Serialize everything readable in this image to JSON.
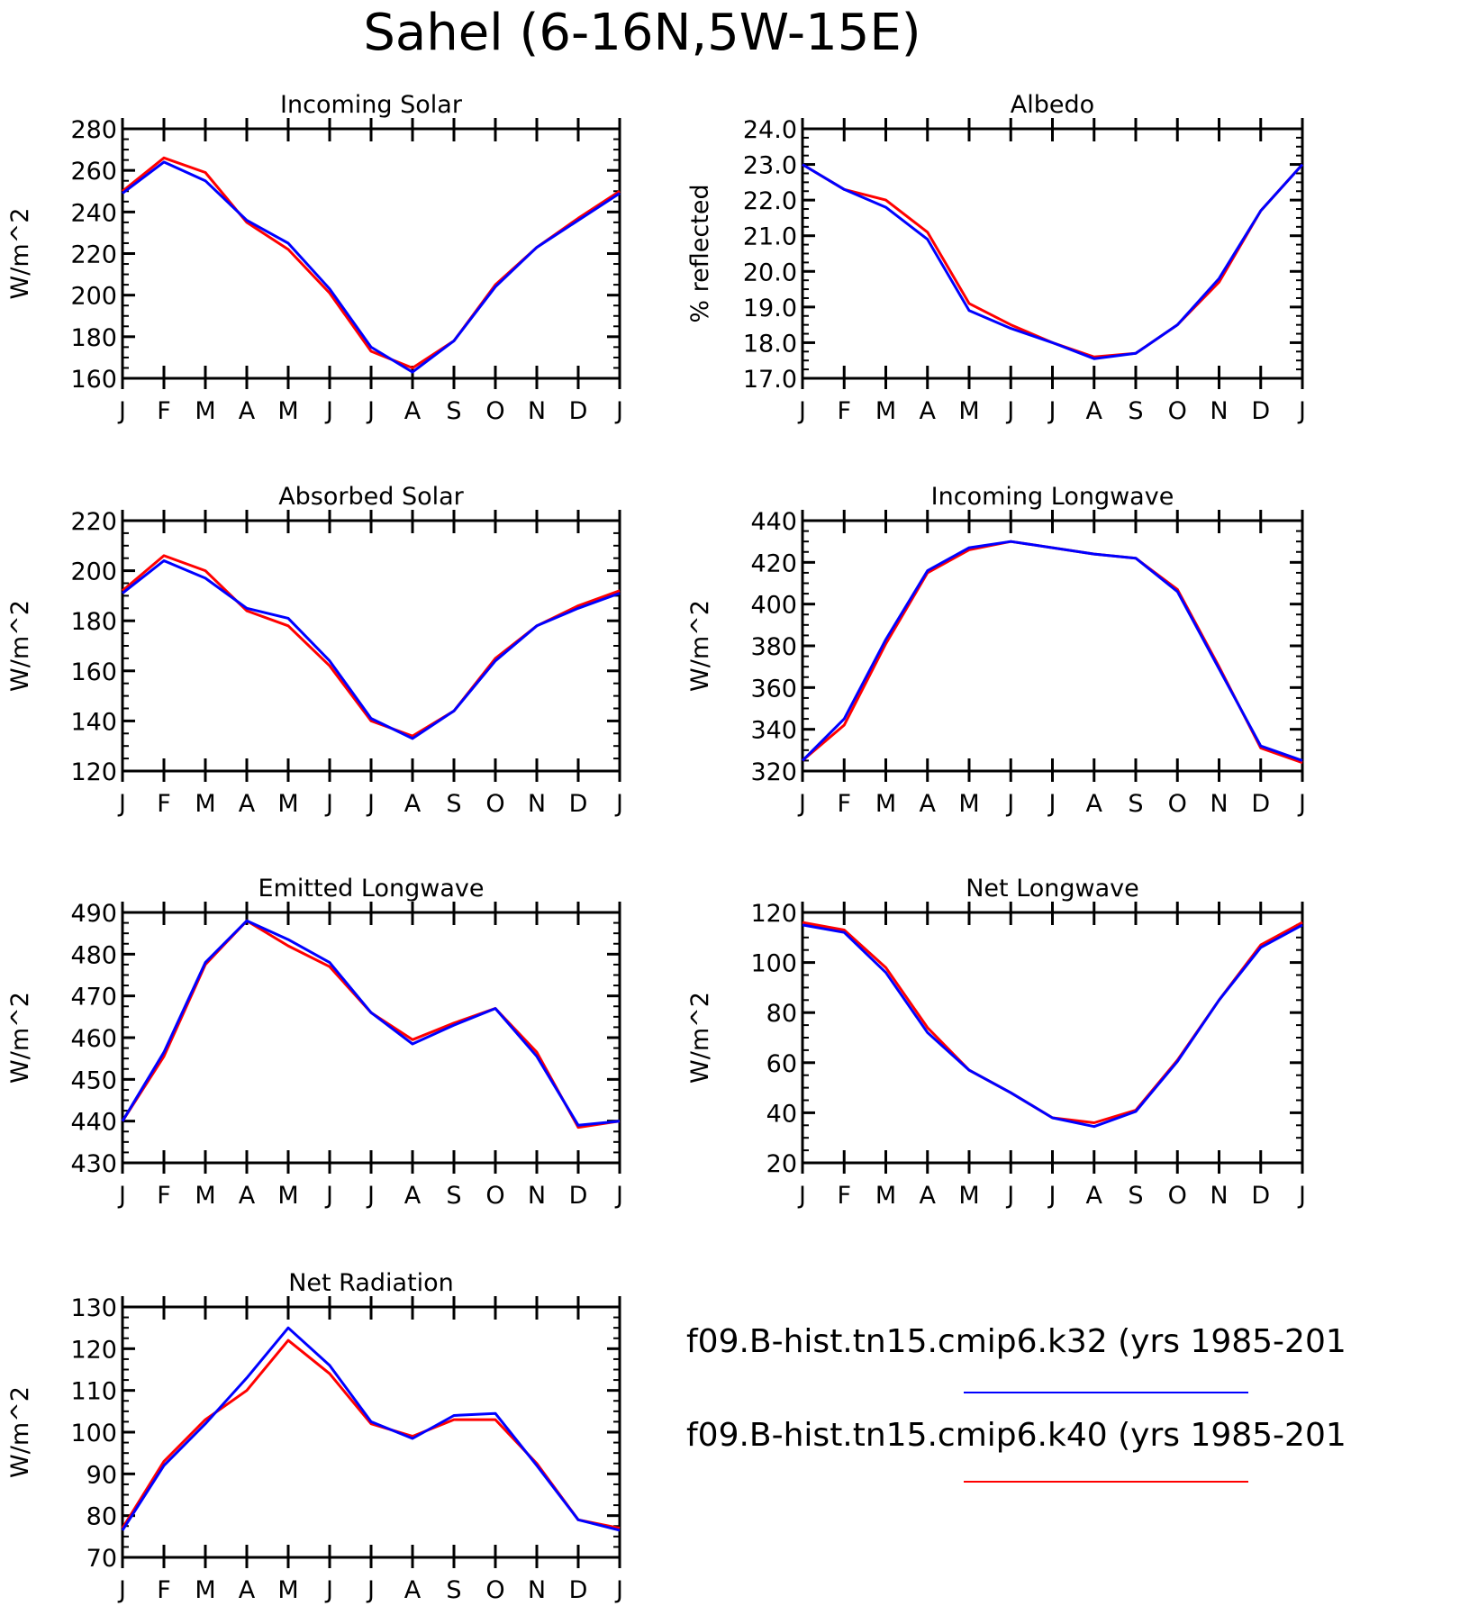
{
  "title": "Sahel (6-16N,5W-15E)",
  "colors": {
    "k32": "#0000ff",
    "k40": "#ff0000",
    "axis": "#000000"
  },
  "legend": [
    {
      "label": "f09.B-hist.tn15.cmip6.k32 (yrs 1985-201",
      "color": "#0000ff"
    },
    {
      "label": "f09.B-hist.tn15.cmip6.k40 (yrs 1985-201",
      "color": "#ff0000"
    }
  ],
  "chart_data": [
    {
      "type": "line",
      "title": "Incoming Solar",
      "ylabel": "W/m^2",
      "categories": [
        "J",
        "F",
        "M",
        "A",
        "M",
        "J",
        "J",
        "A",
        "S",
        "O",
        "N",
        "D",
        "J"
      ],
      "ylim": [
        160,
        280
      ],
      "yticks": [
        "160",
        "180",
        "200",
        "220",
        "240",
        "260",
        "280"
      ],
      "series": [
        {
          "name": "f09.B-hist.tn15.cmip6.k40 (yrs 1985-201",
          "color": "#ff0000",
          "values": [
            250,
            266,
            259,
            235,
            222,
            201,
            173,
            165,
            178,
            205,
            223,
            237,
            250
          ]
        },
        {
          "name": "f09.B-hist.tn15.cmip6.k32 (yrs 1985-201",
          "color": "#0000ff",
          "values": [
            249,
            264,
            255,
            236,
            225,
            203,
            175,
            163,
            178,
            204,
            223,
            236,
            249
          ]
        }
      ]
    },
    {
      "type": "line",
      "title": "Albedo",
      "ylabel": "% reflected",
      "categories": [
        "J",
        "F",
        "M",
        "A",
        "M",
        "J",
        "J",
        "A",
        "S",
        "O",
        "N",
        "D",
        "J"
      ],
      "ylim": [
        17.0,
        24.0
      ],
      "yticks": [
        "17.0",
        "18.0",
        "19.0",
        "20.0",
        "21.0",
        "22.0",
        "23.0",
        "24.0"
      ],
      "series": [
        {
          "name": "f09.B-hist.tn15.cmip6.k40 (yrs 1985-201",
          "color": "#ff0000",
          "values": [
            23.0,
            22.3,
            22.0,
            21.1,
            19.1,
            18.5,
            18.0,
            17.6,
            17.7,
            18.5,
            19.7,
            21.7,
            23.0
          ]
        },
        {
          "name": "f09.B-hist.tn15.cmip6.k32 (yrs 1985-201",
          "color": "#0000ff",
          "values": [
            23.0,
            22.3,
            21.8,
            20.9,
            18.9,
            18.4,
            18.0,
            17.55,
            17.7,
            18.5,
            19.8,
            21.7,
            23.0
          ]
        }
      ]
    },
    {
      "type": "line",
      "title": "Absorbed Solar",
      "ylabel": "W/m^2",
      "categories": [
        "J",
        "F",
        "M",
        "A",
        "M",
        "J",
        "J",
        "A",
        "S",
        "O",
        "N",
        "D",
        "J"
      ],
      "ylim": [
        120,
        220
      ],
      "yticks": [
        "120",
        "140",
        "160",
        "180",
        "200",
        "220"
      ],
      "series": [
        {
          "name": "f09.B-hist.tn15.cmip6.k40 (yrs 1985-201",
          "color": "#ff0000",
          "values": [
            192,
            206,
            200,
            184,
            178,
            162,
            140,
            134,
            144,
            165,
            178,
            186,
            192
          ]
        },
        {
          "name": "f09.B-hist.tn15.cmip6.k32 (yrs 1985-201",
          "color": "#0000ff",
          "values": [
            191,
            204,
            197,
            185,
            181,
            164,
            141,
            133,
            144,
            164,
            178,
            185,
            191
          ]
        }
      ]
    },
    {
      "type": "line",
      "title": "Incoming Longwave",
      "ylabel": "W/m^2",
      "categories": [
        "J",
        "F",
        "M",
        "A",
        "M",
        "J",
        "J",
        "A",
        "S",
        "O",
        "N",
        "D",
        "J"
      ],
      "ylim": [
        320,
        440
      ],
      "yticks": [
        "320",
        "340",
        "360",
        "380",
        "400",
        "420",
        "440"
      ],
      "series": [
        {
          "name": "f09.B-hist.tn15.cmip6.k40 (yrs 1985-201",
          "color": "#ff0000",
          "values": [
            325,
            342,
            381,
            415,
            426,
            430,
            427,
            424,
            422,
            407,
            370,
            331,
            324
          ]
        },
        {
          "name": "f09.B-hist.tn15.cmip6.k32 (yrs 1985-201",
          "color": "#0000ff",
          "values": [
            325,
            345,
            383,
            416,
            427,
            430,
            427,
            424,
            422,
            406,
            369,
            332,
            325
          ]
        }
      ]
    },
    {
      "type": "line",
      "title": "Emitted Longwave",
      "ylabel": "W/m^2",
      "categories": [
        "J",
        "F",
        "M",
        "A",
        "M",
        "J",
        "J",
        "A",
        "S",
        "O",
        "N",
        "D",
        "J"
      ],
      "ylim": [
        430,
        490
      ],
      "yticks": [
        "430",
        "440",
        "450",
        "460",
        "470",
        "480",
        "490"
      ],
      "series": [
        {
          "name": "f09.B-hist.tn15.cmip6.k40 (yrs 1985-201",
          "color": "#ff0000",
          "values": [
            440,
            455.5,
            477.5,
            488,
            482,
            477,
            466,
            459.5,
            463.5,
            467,
            456.5,
            438.5,
            440
          ]
        },
        {
          "name": "f09.B-hist.tn15.cmip6.k32 (yrs 1985-201",
          "color": "#0000ff",
          "values": [
            440,
            456.5,
            478,
            488,
            483.5,
            478,
            466,
            458.5,
            463,
            467,
            455.5,
            439,
            440
          ]
        }
      ]
    },
    {
      "type": "line",
      "title": "Net Longwave",
      "ylabel": "W/m^2",
      "categories": [
        "J",
        "F",
        "M",
        "A",
        "M",
        "J",
        "J",
        "A",
        "S",
        "O",
        "N",
        "D",
        "J"
      ],
      "ylim": [
        20,
        120
      ],
      "yticks": [
        "20",
        "40",
        "60",
        "80",
        "100",
        "120"
      ],
      "series": [
        {
          "name": "f09.B-hist.tn15.cmip6.k40 (yrs 1985-201",
          "color": "#ff0000",
          "values": [
            116,
            113,
            98,
            74,
            57,
            48,
            38,
            36,
            41,
            61,
            85,
            107,
            116
          ]
        },
        {
          "name": "f09.B-hist.tn15.cmip6.k32 (yrs 1985-201",
          "color": "#0000ff",
          "values": [
            115,
            112,
            96,
            72,
            57,
            48,
            38,
            34.5,
            40.5,
            60.5,
            85,
            106,
            115
          ]
        }
      ]
    },
    {
      "type": "line",
      "title": "Net Radiation",
      "ylabel": "W/m^2",
      "categories": [
        "J",
        "F",
        "M",
        "A",
        "M",
        "J",
        "J",
        "A",
        "S",
        "O",
        "N",
        "D",
        "J"
      ],
      "ylim": [
        70,
        130
      ],
      "yticks": [
        "70",
        "80",
        "90",
        "100",
        "110",
        "120",
        "130"
      ],
      "series": [
        {
          "name": "f09.B-hist.tn15.cmip6.k40 (yrs 1985-201",
          "color": "#ff0000",
          "values": [
            77,
            93,
            103,
            110,
            122,
            114,
            102,
            99,
            103,
            103,
            92.5,
            79,
            77
          ]
        },
        {
          "name": "f09.B-hist.tn15.cmip6.k32 (yrs 1985-201",
          "color": "#0000ff",
          "values": [
            76.5,
            92,
            102,
            113,
            125,
            116,
            102.5,
            98.5,
            104,
            104.5,
            92,
            79,
            76.5
          ]
        }
      ]
    }
  ]
}
